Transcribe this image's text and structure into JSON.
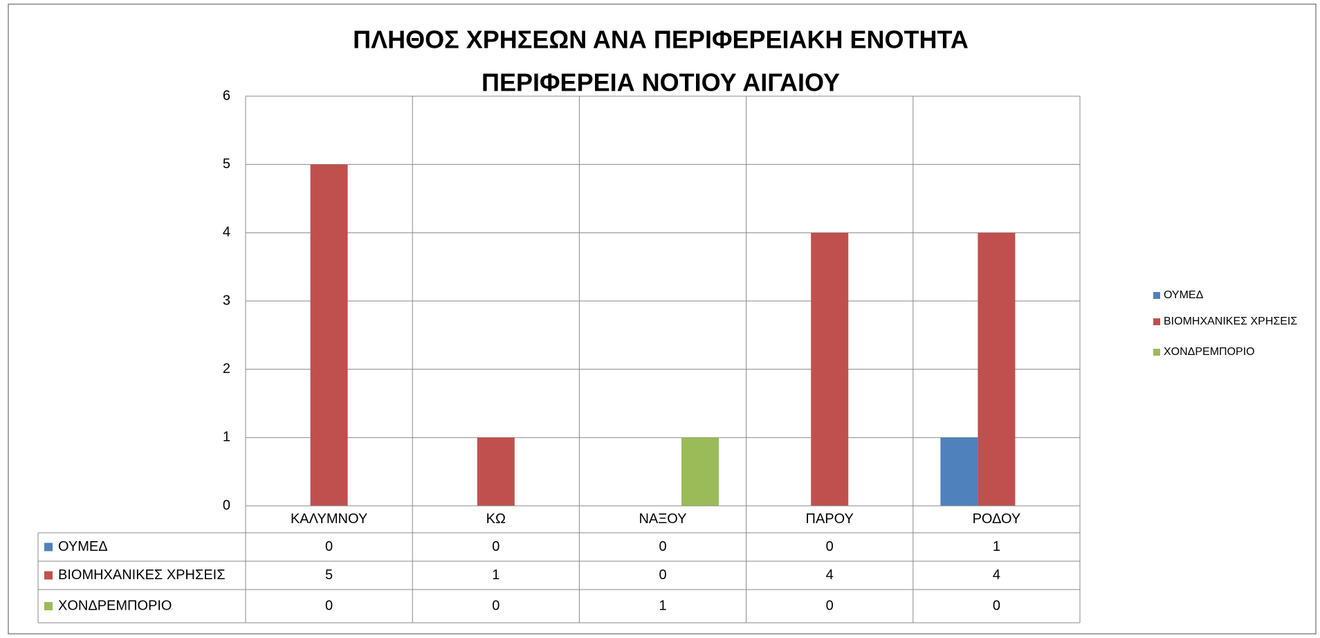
{
  "chart_data": {
    "type": "bar",
    "title": [
      "ΠΛΗΘΟΣ ΧΡΗΣΕΩΝ ΑΝΑ ΠΕΡΙΦΕΡΕΙΑΚΗ ΕΝΟΤΗΤΑ",
      "ΠΕΡΙΦΕΡΕΙΑ ΝΟΤΙΟΥ ΑΙΓΑΙΟΥ"
    ],
    "categories": [
      "ΚΑΛΥΜΝΟΥ",
      "ΚΩ",
      "ΝΑΞΟΥ",
      "ΠΑΡΟΥ",
      "ΡΟΔΟΥ"
    ],
    "series": [
      {
        "name": "ΟΥΜΕΔ",
        "color": "#4f81bd",
        "values": [
          0,
          0,
          0,
          0,
          1
        ]
      },
      {
        "name": "ΒΙΟΜΗΧΑΝΙΚΕΣ ΧΡΗΣΕΙΣ",
        "color": "#c0504d",
        "values": [
          5,
          1,
          0,
          4,
          4
        ]
      },
      {
        "name": "ΧΟΝΔΡΕΜΠΟΡΙΟ",
        "color": "#9bbb59",
        "values": [
          0,
          0,
          1,
          0,
          0
        ]
      }
    ],
    "ylim": [
      0,
      6
    ],
    "yticks": [
      0,
      1,
      2,
      3,
      4,
      5,
      6
    ],
    "grid": true,
    "legend": "right",
    "data_table": true
  }
}
